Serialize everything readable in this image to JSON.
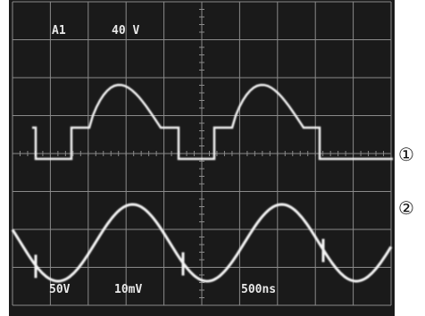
{
  "screen": {
    "top_left": "A1",
    "top_right": "40 V",
    "bottom_ch1": "50V",
    "bottom_ch2": "10mV",
    "bottom_time": "500ns"
  },
  "markers": {
    "trace1": "①",
    "trace2": "②"
  }
}
